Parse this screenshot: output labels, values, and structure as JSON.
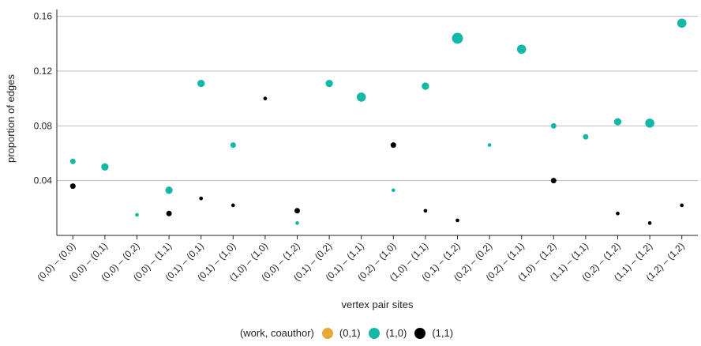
{
  "chart_data": {
    "type": "scatter",
    "title": "",
    "xlabel": "vertex pair sites",
    "ylabel": "proportion of edges",
    "ylim": [
      0,
      0.165
    ],
    "yticks": [
      0.04,
      0.08,
      0.12,
      0.16
    ],
    "ytick_labels": [
      "0.04",
      "0.08",
      "0.12",
      "0.16"
    ],
    "grid": "horizontal",
    "legend_position": "bottom",
    "legend_title": "(work, coauthor)",
    "categories": [
      "(0,0) – (0,0)",
      "(0,0) – (0,1)",
      "(0,0) – (0,2)",
      "(0,0) – (1,1)",
      "(0,1) – (0,1)",
      "(0,1) – (1,0)",
      "(1,0) – (1,0)",
      "(0,0) – (1,2)",
      "(0,1) – (0,2)",
      "(0,1) – (1,1)",
      "(0,2) – (1,0)",
      "(1,0) – (1,1)",
      "(0,1) – (1,2)",
      "(0,2) – (0,2)",
      "(0,2) – (1,1)",
      "(1,0) – (1,2)",
      "(1,1) – (1,1)",
      "(0,2) – (1,2)",
      "(1,1) – (1,2)",
      "(1,2) – (1,2)"
    ],
    "series": [
      {
        "name": "(0,1)",
        "color": "#e8a838",
        "points": []
      },
      {
        "name": "(1,0)",
        "color": "#14b8a6",
        "points": [
          {
            "category": "(0,0) – (0,0)",
            "y": 0.054,
            "size": 2
          },
          {
            "category": "(0,0) – (0,1)",
            "y": 0.05,
            "size": 3
          },
          {
            "category": "(0,0) – (0,2)",
            "y": 0.015,
            "size": 1
          },
          {
            "category": "(0,0) – (1,1)",
            "y": 0.033,
            "size": 3
          },
          {
            "category": "(0,1) – (0,1)",
            "y": 0.111,
            "size": 3
          },
          {
            "category": "(0,1) – (1,0)",
            "y": 0.066,
            "size": 2
          },
          {
            "category": "(0,0) – (1,2)",
            "y": 0.009,
            "size": 1
          },
          {
            "category": "(0,1) – (0,2)",
            "y": 0.111,
            "size": 3
          },
          {
            "category": "(0,1) – (1,1)",
            "y": 0.101,
            "size": 4
          },
          {
            "category": "(0,2) – (1,0)",
            "y": 0.033,
            "size": 1
          },
          {
            "category": "(1,0) – (1,1)",
            "y": 0.109,
            "size": 3
          },
          {
            "category": "(0,1) – (1,2)",
            "y": 0.144,
            "size": 5
          },
          {
            "category": "(0,2) – (0,2)",
            "y": 0.066,
            "size": 1
          },
          {
            "category": "(0,2) – (1,1)",
            "y": 0.136,
            "size": 4
          },
          {
            "category": "(1,0) – (1,2)",
            "y": 0.08,
            "size": 2
          },
          {
            "category": "(1,1) – (1,1)",
            "y": 0.072,
            "size": 2
          },
          {
            "category": "(0,2) – (1,2)",
            "y": 0.083,
            "size": 3
          },
          {
            "category": "(1,1) – (1,2)",
            "y": 0.082,
            "size": 4
          },
          {
            "category": "(1,2) – (1,2)",
            "y": 0.155,
            "size": 4
          }
        ]
      },
      {
        "name": "(1,1)",
        "color": "#000000",
        "points": [
          {
            "category": "(0,0) – (0,0)",
            "y": 0.036,
            "size": 2
          },
          {
            "category": "(0,0) – (1,1)",
            "y": 0.016,
            "size": 2
          },
          {
            "category": "(0,1) – (0,1)",
            "y": 0.027,
            "size": 1
          },
          {
            "category": "(0,1) – (1,0)",
            "y": 0.022,
            "size": 1
          },
          {
            "category": "(1,0) – (1,0)",
            "y": 0.1,
            "size": 1
          },
          {
            "category": "(0,0) – (1,2)",
            "y": 0.018,
            "size": 2
          },
          {
            "category": "(0,2) – (1,0)",
            "y": 0.066,
            "size": 2
          },
          {
            "category": "(1,0) – (1,1)",
            "y": 0.018,
            "size": 1
          },
          {
            "category": "(0,1) – (1,2)",
            "y": 0.011,
            "size": 1
          },
          {
            "category": "(1,0) – (1,2)",
            "y": 0.04,
            "size": 2
          },
          {
            "category": "(0,2) – (1,2)",
            "y": 0.016,
            "size": 1
          },
          {
            "category": "(1,1) – (1,2)",
            "y": 0.009,
            "size": 1
          },
          {
            "category": "(1,2) – (1,2)",
            "y": 0.022,
            "size": 1
          }
        ]
      }
    ]
  }
}
